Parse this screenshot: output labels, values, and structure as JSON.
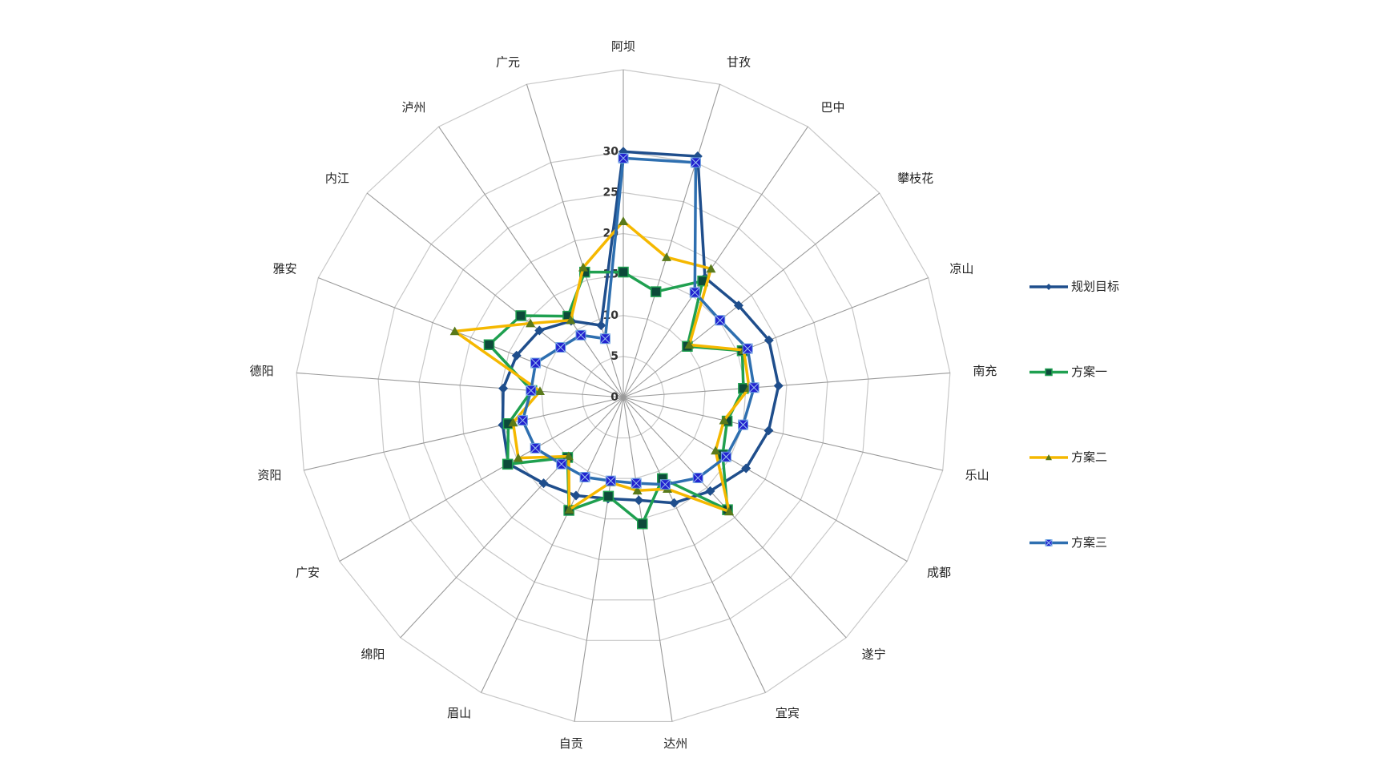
{
  "chart_data": {
    "type": "radar",
    "categories": [
      "阿坝",
      "甘孜",
      "巴中",
      "攀枝花",
      "凉山",
      "南充",
      "乐山",
      "成都",
      "遂宁",
      "宜宾",
      "达州",
      "自贡",
      "眉山",
      "绵阳",
      "广安",
      "资阳",
      "德阳",
      "雅安",
      "内江",
      "泸州",
      "广元"
    ],
    "ylim": [
      0,
      40
    ],
    "yticks": [
      0,
      5,
      10,
      15,
      20,
      25,
      30
    ],
    "grid": true,
    "legend": "right",
    "series": [
      {
        "name": "规划目标",
        "color": "#1f4e8c",
        "marker": "diamond",
        "marker_color": "#1f4e8c",
        "values": [
          30,
          30.8,
          17.7,
          18,
          19.1,
          19,
          18.2,
          17.3,
          15.6,
          14.3,
          12.7,
          12.5,
          13.3,
          14.3,
          16.2,
          15.1,
          14.7,
          14,
          13.1,
          11.3,
          9.2
        ]
      },
      {
        "name": "方案一",
        "color": "#1fa050",
        "marker": "square",
        "marker_color": "#0d4a3a",
        "values": [
          15.3,
          13.5,
          17.2,
          10,
          15.6,
          14.7,
          13,
          14,
          18.7,
          11,
          15.6,
          12.2,
          15.3,
          10,
          16.3,
          14.4,
          11.2,
          17.6,
          16,
          12,
          16
        ]
      },
      {
        "name": "方案二",
        "color": "#f5b800",
        "marker": "triangle",
        "marker_color": "#5a7a1a",
        "values": [
          21.5,
          17.9,
          19,
          10.3,
          15.8,
          15.4,
          12.6,
          13,
          19,
          12.4,
          11.5,
          10.5,
          15.2,
          9.8,
          14.8,
          13.8,
          10.2,
          22.1,
          14.5,
          11.4,
          16.6
        ]
      },
      {
        "name": "方案三",
        "color": "#2e6fb0",
        "marker": "xsquare",
        "marker_color": "#2222d0",
        "values": [
          29.2,
          30,
          15.5,
          15.1,
          16.3,
          16,
          15,
          14.5,
          13.4,
          11.8,
          10.6,
          10.3,
          10.8,
          11.1,
          12.4,
          12.6,
          11.3,
          11.5,
          9.8,
          9.2,
          7.5
        ]
      }
    ]
  }
}
